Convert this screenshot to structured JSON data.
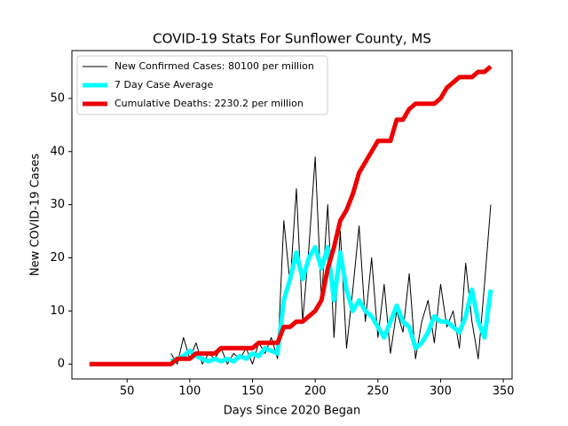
{
  "chart_data": {
    "type": "line",
    "title": "COVID-19 Stats For Sunflower County, MS",
    "x_label": "Days Since 2020 Began",
    "y_label": "New COVID-19 Cases",
    "x": [
      20,
      25,
      30,
      35,
      40,
      45,
      50,
      55,
      60,
      65,
      70,
      75,
      80,
      85,
      90,
      95,
      100,
      105,
      110,
      115,
      120,
      125,
      130,
      135,
      140,
      145,
      150,
      155,
      160,
      165,
      170,
      175,
      180,
      185,
      190,
      195,
      200,
      205,
      210,
      215,
      220,
      225,
      230,
      235,
      240,
      245,
      250,
      255,
      260,
      265,
      270,
      275,
      280,
      285,
      290,
      295,
      300,
      305,
      310,
      315,
      320,
      325,
      330,
      335,
      340
    ],
    "series": [
      {
        "name": "New Confirmed Cases: 80100 per million",
        "color": "#000000",
        "width": 1,
        "values": [
          null,
          null,
          null,
          null,
          null,
          null,
          null,
          null,
          null,
          null,
          null,
          null,
          null,
          2,
          0,
          5,
          1,
          4,
          0,
          2,
          1,
          3,
          0,
          2,
          1,
          3,
          0,
          4,
          2,
          5,
          1,
          27,
          15,
          33,
          8,
          22,
          39,
          12,
          30,
          5,
          25,
          3,
          14,
          26,
          8,
          20,
          5,
          15,
          2,
          10,
          6,
          17,
          1,
          8,
          12,
          4,
          15,
          7,
          10,
          3,
          19,
          8,
          1,
          15,
          30
        ]
      },
      {
        "name": "7 Day Case Average",
        "color": "#00ffff",
        "width": 5,
        "values": [
          null,
          null,
          null,
          null,
          null,
          null,
          null,
          null,
          null,
          null,
          null,
          null,
          null,
          0.5,
          1,
          1.5,
          2.5,
          1.5,
          1,
          0.5,
          1,
          0.5,
          1,
          0.5,
          1.5,
          1,
          2,
          1.5,
          3,
          2.5,
          2,
          12,
          16,
          21,
          16,
          20,
          22,
          18,
          22,
          12,
          21,
          14,
          10,
          12,
          10,
          9,
          7,
          5,
          8,
          11,
          8,
          7,
          3,
          4,
          6,
          9,
          8,
          8,
          7,
          6,
          9,
          14,
          8,
          5,
          14
        ]
      },
      {
        "name": "Cumulative Deaths: 2230.2 per million",
        "color": "#ee0000",
        "width": 5,
        "values": [
          0,
          0,
          0,
          0,
          0,
          0,
          0,
          0,
          0,
          0,
          0,
          0,
          0,
          0,
          1,
          1,
          1,
          2,
          2,
          2,
          2,
          3,
          3,
          3,
          3,
          3,
          3,
          4,
          4,
          4,
          4,
          7,
          7,
          8,
          8,
          9,
          10,
          12,
          18,
          22,
          27,
          29,
          32,
          36,
          38,
          40,
          42,
          42,
          42,
          46,
          46,
          48,
          49,
          49,
          49,
          49,
          50,
          52,
          53,
          54,
          54,
          54,
          55,
          55,
          56
        ]
      }
    ],
    "xlim": [
      6,
      357
    ],
    "ylim": [
      -2.8,
      59
    ],
    "xticks": [
      50,
      100,
      150,
      200,
      250,
      300,
      350
    ],
    "yticks": [
      0,
      10,
      20,
      30,
      40,
      50
    ],
    "legend": "upper left"
  }
}
